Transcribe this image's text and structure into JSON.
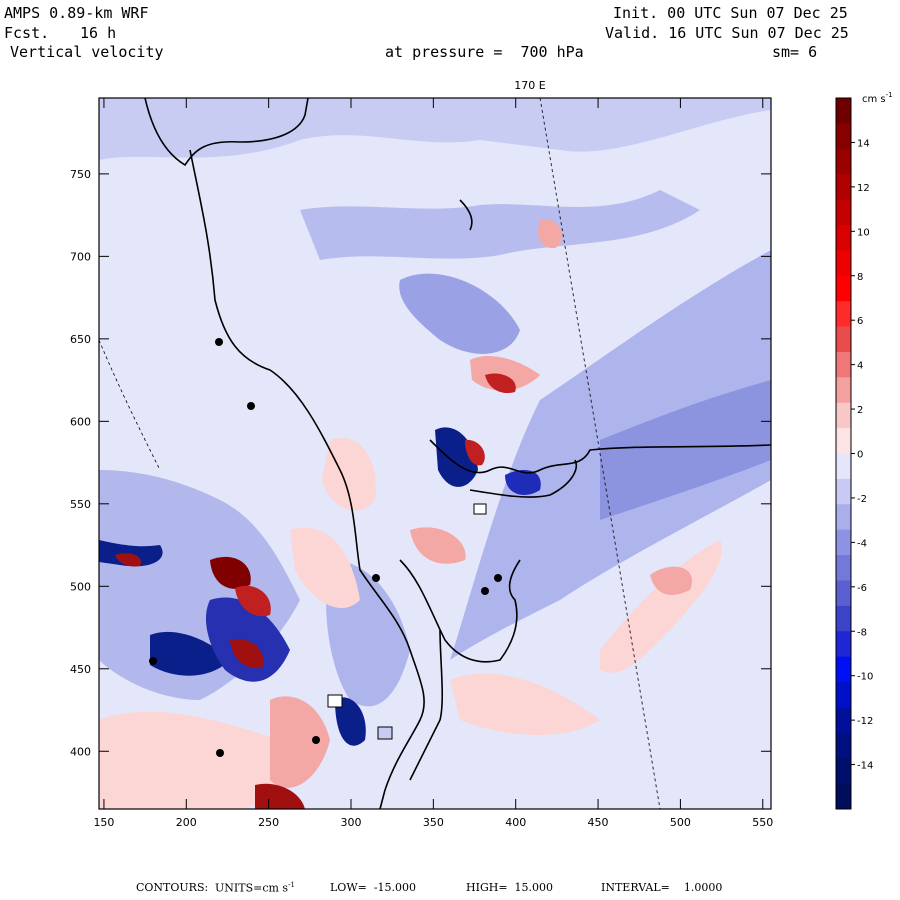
{
  "header": {
    "model": "AMPS 0.89-km WRF",
    "fcst_label": "Fcst.",
    "fcst_value": "16 h",
    "field": "Vertical velocity",
    "init": "Init. 00 UTC Sun 07 Dec 25",
    "valid": "Valid. 16 UTC Sun 07 Dec 25",
    "pressure_text": "at pressure =  700 hPa",
    "smoothing": "sm= 6"
  },
  "map": {
    "meridian_label": "170 E",
    "x_ticks": [
      "150",
      "200",
      "250",
      "300",
      "350",
      "400",
      "450",
      "500",
      "550"
    ],
    "y_ticks": [
      "750",
      "700",
      "650",
      "600",
      "550",
      "500",
      "450",
      "400"
    ],
    "x_range": [
      147,
      555
    ],
    "y_range": [
      365,
      796
    ],
    "colors": {
      "light_blue": "#e4e6fa",
      "mid_blue": "#b0b6ec",
      "blue": "#7b82d6",
      "deep_blue": "#0a1f8a",
      "light_red": "#fbd6d4",
      "red": "#d84040",
      "deep_red": "#800000"
    }
  },
  "colorbar": {
    "unit_label": "cm s",
    "unit_exp": "-1",
    "labels": [
      "14",
      "12",
      "10",
      "8",
      "6",
      "4",
      "2",
      "0",
      "-2",
      "-4",
      "-6",
      "-8",
      "-10",
      "-12",
      "-14"
    ],
    "colors": [
      "#6e0000",
      "#860000",
      "#9a0000",
      "#b00000",
      "#c40000",
      "#d80000",
      "#ec0000",
      "#ff0000",
      "#ff2a2a",
      "#ea4b4b",
      "#ef7777",
      "#f4a0a0",
      "#f8c8c8",
      "#fde4e4",
      "#e6e6fb",
      "#c8caf3",
      "#aaaeeb",
      "#8e92e2",
      "#7379d8",
      "#5a60cf",
      "#3c43c8",
      "#1f26d5",
      "#0010f4",
      "#0010c8",
      "#00109c",
      "#001080",
      "#000e6c",
      "#000c5c"
    ]
  },
  "footer": {
    "contours": "CONTOURS:",
    "units": "UNITS=cm s",
    "units_exp": "-1",
    "low": "LOW=  -15.000",
    "high": "HIGH=  15.000",
    "interval": "INTERVAL=    1.0000"
  }
}
